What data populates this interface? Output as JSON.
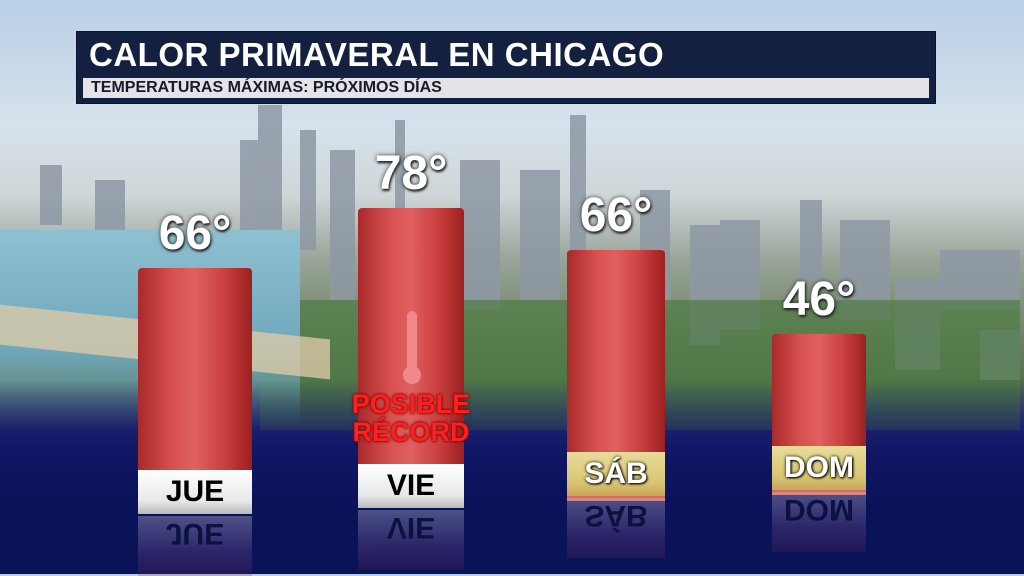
{
  "header": {
    "title": "CALOR PRIMAVERAL EN CHICAGO",
    "subtitle": "TEMPERATURAS MÁXIMAS: PRÓXIMOS DÍAS"
  },
  "chart_data": {
    "type": "bar",
    "title": "CALOR PRIMAVERAL EN CHICAGO",
    "subtitle": "TEMPERATURAS MÁXIMAS: PRÓXIMOS DÍAS",
    "categories": [
      "JUE",
      "VIE",
      "SÁB",
      "DOM"
    ],
    "values": [
      66,
      78,
      66,
      46
    ],
    "value_labels": [
      "66°",
      "78°",
      "66°",
      "46°"
    ],
    "bar_color": "#d04848",
    "label_styles": [
      "white",
      "white",
      "gold",
      "gold"
    ],
    "annotations": [
      {
        "category": "VIE",
        "text_line1": "POSIBLE",
        "text_line2": "RÉCORD",
        "color": "#ff2020",
        "icon": "thermometer-icon"
      }
    ]
  }
}
